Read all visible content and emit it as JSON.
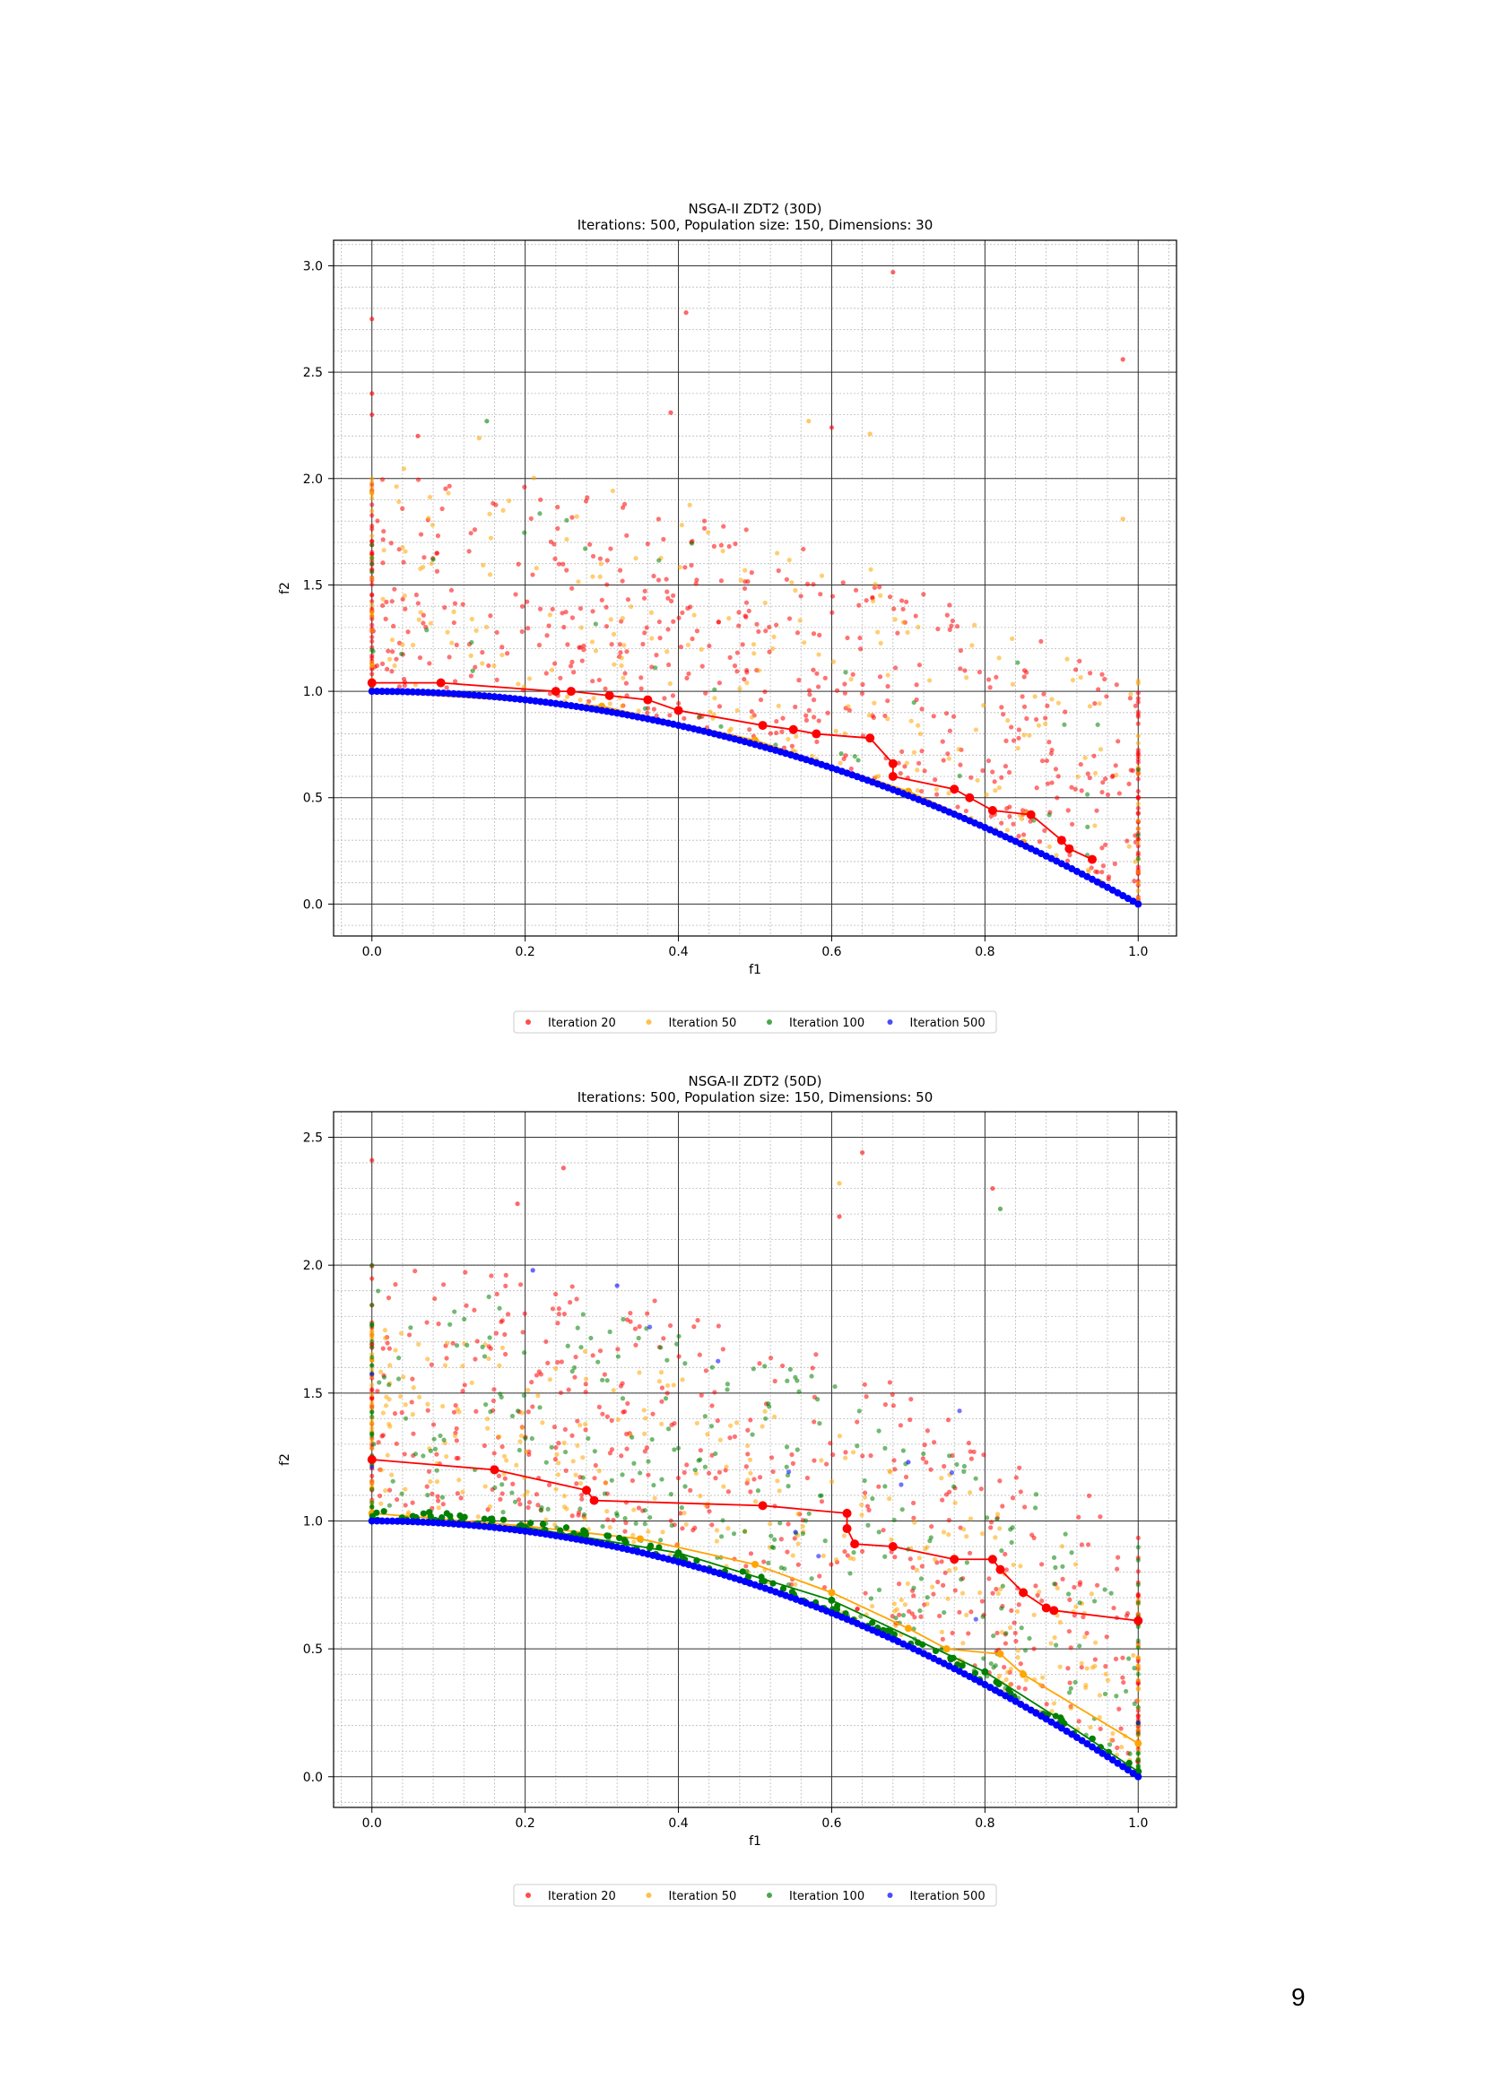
{
  "page": {
    "number": "9"
  },
  "colors": {
    "iter20": "#ff0000",
    "iter50": "#ffa500",
    "iter100": "#008000",
    "iter500": "#0000ff"
  },
  "chart_data": [
    {
      "type": "scatter",
      "title": "NSGA-II ZDT2 (30D)",
      "subtitle": "Iterations: 500, Population size: 150, Dimensions: 30",
      "xlabel": "f1",
      "ylabel": "f2",
      "xlim": [
        -0.05,
        1.05
      ],
      "ylim": [
        -0.15,
        3.12
      ],
      "xticks": [
        0.0,
        0.2,
        0.4,
        0.6,
        0.8,
        1.0
      ],
      "xtick_labels": [
        "0.0",
        "0.2",
        "0.4",
        "0.6",
        "0.8",
        "1.0"
      ],
      "yticks": [
        0.0,
        0.5,
        1.0,
        1.5,
        2.0,
        2.5,
        3.0
      ],
      "ytick_labels": [
        "0.0",
        "0.5",
        "1.0",
        "1.5",
        "2.0",
        "2.5",
        "3.0"
      ],
      "grid": true,
      "legend_position": "below",
      "series": [
        {
          "name": "Iteration 20",
          "color": "#ff0000",
          "front": [
            [
              0.0,
              1.04
            ],
            [
              0.09,
              1.04
            ],
            [
              0.24,
              1.0
            ],
            [
              0.26,
              1.0
            ],
            [
              0.31,
              0.98
            ],
            [
              0.36,
              0.96
            ],
            [
              0.4,
              0.91
            ],
            [
              0.51,
              0.84
            ],
            [
              0.55,
              0.82
            ],
            [
              0.58,
              0.8
            ],
            [
              0.65,
              0.78
            ],
            [
              0.68,
              0.66
            ],
            [
              0.68,
              0.6
            ],
            [
              0.76,
              0.54
            ],
            [
              0.78,
              0.5
            ],
            [
              0.81,
              0.44
            ],
            [
              0.86,
              0.42
            ],
            [
              0.9,
              0.3
            ],
            [
              0.91,
              0.26
            ],
            [
              0.94,
              0.21
            ]
          ],
          "cloud": {
            "count": 560,
            "f1": [
              0.0,
              1.0
            ],
            "f2_offset": [
              0.02,
              1.0
            ],
            "seed": 11
          },
          "extra_points": [
            [
              0.0,
              2.75
            ],
            [
              0.41,
              2.78
            ],
            [
              0.68,
              2.97
            ],
            [
              0.98,
              2.56
            ],
            [
              0.39,
              2.31
            ],
            [
              0.06,
              2.2
            ],
            [
              0.6,
              2.24
            ],
            [
              0.0,
              2.4
            ],
            [
              0.0,
              2.3
            ]
          ]
        },
        {
          "name": "Iteration 50",
          "color": "#ffa500",
          "front": [
            [
              0.0,
              1.0
            ],
            [
              0.3,
              0.93
            ],
            [
              0.5,
              0.77
            ],
            [
              0.7,
              0.53
            ],
            [
              0.85,
              0.29
            ],
            [
              0.95,
              0.1
            ],
            [
              1.0,
              0.0
            ]
          ],
          "cloud": {
            "count": 250,
            "f1": [
              0.0,
              1.0
            ],
            "f2_offset": [
              0.0,
              1.05
            ],
            "seed": 23
          },
          "extra_points": [
            [
              0.14,
              2.19
            ],
            [
              0.57,
              2.27
            ],
            [
              0.65,
              2.21
            ],
            [
              0.98,
              1.81
            ]
          ]
        },
        {
          "name": "Iteration 100",
          "color": "#008000",
          "front": [],
          "cloud": {
            "count": 40,
            "f1": [
              0.0,
              1.0
            ],
            "f2_offset": [
              0.0,
              0.9
            ],
            "seed": 37
          },
          "extra_points": [
            [
              0.15,
              2.27
            ],
            [
              0.0,
              1.6
            ],
            [
              0.08,
              1.62
            ]
          ]
        },
        {
          "name": "Iteration 500",
          "color": "#0000ff",
          "front": [
            [
              0.0,
              1.0
            ],
            [
              0.1,
              0.99
            ],
            [
              0.2,
              0.96
            ],
            [
              0.3,
              0.91
            ],
            [
              0.4,
              0.84
            ],
            [
              0.5,
              0.75
            ],
            [
              0.6,
              0.64
            ],
            [
              0.7,
              0.51
            ],
            [
              0.8,
              0.36
            ],
            [
              0.9,
              0.19
            ],
            [
              1.0,
              0.0
            ]
          ],
          "cloud": {
            "count": 0,
            "f1": [
              0.0,
              1.0
            ],
            "f2_offset": [
              0.0,
              0.0
            ],
            "seed": 5
          },
          "extra_points": []
        }
      ]
    },
    {
      "type": "scatter",
      "title": "NSGA-II ZDT2 (50D)",
      "subtitle": "Iterations: 500, Population size: 150, Dimensions: 50",
      "xlabel": "f1",
      "ylabel": "f2",
      "xlim": [
        -0.05,
        1.05
      ],
      "ylim": [
        -0.12,
        2.6
      ],
      "xticks": [
        0.0,
        0.2,
        0.4,
        0.6,
        0.8,
        1.0
      ],
      "xtick_labels": [
        "0.0",
        "0.2",
        "0.4",
        "0.6",
        "0.8",
        "1.0"
      ],
      "yticks": [
        0.0,
        0.5,
        1.0,
        1.5,
        2.0,
        2.5
      ],
      "ytick_labels": [
        "0.0",
        "0.5",
        "1.0",
        "1.5",
        "2.0",
        "2.5"
      ],
      "grid": true,
      "legend_position": "below",
      "series": [
        {
          "name": "Iteration 20",
          "color": "#ff0000",
          "front": [
            [
              0.0,
              1.24
            ],
            [
              0.16,
              1.2
            ],
            [
              0.28,
              1.12
            ],
            [
              0.29,
              1.08
            ],
            [
              0.51,
              1.06
            ],
            [
              0.62,
              1.03
            ],
            [
              0.62,
              0.97
            ],
            [
              0.63,
              0.91
            ],
            [
              0.68,
              0.9
            ],
            [
              0.76,
              0.85
            ],
            [
              0.81,
              0.85
            ],
            [
              0.82,
              0.81
            ],
            [
              0.85,
              0.72
            ],
            [
              0.88,
              0.66
            ],
            [
              0.89,
              0.65
            ],
            [
              1.0,
              0.61
            ]
          ],
          "cloud": {
            "count": 520,
            "f1": [
              0.0,
              1.0
            ],
            "f2_offset": [
              0.05,
              1.0
            ],
            "seed": 53
          },
          "extra_points": [
            [
              0.0,
              2.41
            ],
            [
              0.64,
              2.44
            ],
            [
              0.25,
              2.38
            ],
            [
              0.19,
              2.24
            ],
            [
              0.81,
              2.3
            ],
            [
              0.61,
              2.19
            ]
          ]
        },
        {
          "name": "Iteration 50",
          "color": "#ffa500",
          "front": [
            [
              0.0,
              1.03
            ],
            [
              0.2,
              0.98
            ],
            [
              0.35,
              0.93
            ],
            [
              0.5,
              0.83
            ],
            [
              0.6,
              0.72
            ],
            [
              0.7,
              0.58
            ],
            [
              0.75,
              0.5
            ],
            [
              0.82,
              0.48
            ],
            [
              0.85,
              0.4
            ],
            [
              1.0,
              0.13
            ]
          ],
          "cloud": {
            "count": 380,
            "f1": [
              0.0,
              1.0
            ],
            "f2_offset": [
              0.0,
              0.75
            ],
            "seed": 67
          },
          "extra_points": [
            [
              0.61,
              2.32
            ]
          ]
        },
        {
          "name": "Iteration 100",
          "color": "#008000",
          "front": [
            [
              0.0,
              1.0
            ],
            [
              0.2,
              0.975
            ],
            [
              0.4,
              0.875
            ],
            [
              0.6,
              0.69
            ],
            [
              0.8,
              0.41
            ],
            [
              0.9,
              0.22
            ],
            [
              1.0,
              0.02
            ]
          ],
          "cloud": {
            "count": 330,
            "f1": [
              0.0,
              1.0
            ],
            "f2_offset": [
              0.0,
              0.9
            ],
            "seed": 79
          },
          "extra_points": [
            [
              0.82,
              2.22
            ],
            [
              0.0,
              2.0
            ]
          ]
        },
        {
          "name": "Iteration 500",
          "color": "#0000ff",
          "front": [
            [
              0.0,
              1.0
            ],
            [
              0.1,
              0.99
            ],
            [
              0.2,
              0.96
            ],
            [
              0.3,
              0.91
            ],
            [
              0.4,
              0.84
            ],
            [
              0.5,
              0.75
            ],
            [
              0.6,
              0.64
            ],
            [
              0.7,
              0.51
            ],
            [
              0.8,
              0.36
            ],
            [
              0.9,
              0.19
            ],
            [
              1.0,
              0.0
            ]
          ],
          "cloud": {
            "count": 12,
            "f1": [
              0.1,
              0.95
            ],
            "f2_offset": [
              0.2,
              1.1
            ],
            "seed": 91
          },
          "extra_points": [
            [
              0.21,
              1.98
            ],
            [
              0.32,
              1.92
            ],
            [
              0.7,
              1.23
            ]
          ]
        }
      ]
    }
  ]
}
